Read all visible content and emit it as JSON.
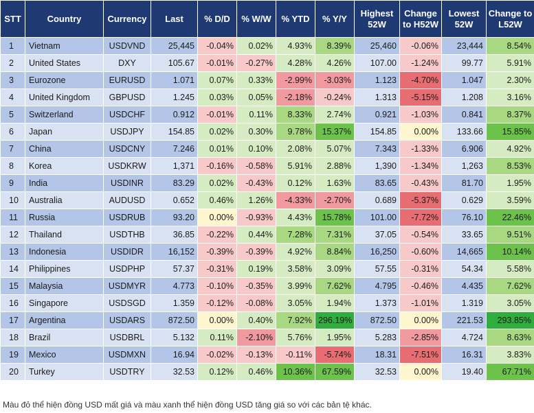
{
  "headers": [
    "STT",
    "Country",
    "Currency",
    "Last",
    "% D/D",
    "% W/W",
    "% YTD",
    "% Y/Y",
    "Highest 52W",
    "Change to H52W",
    "Lowest 52W",
    "Change to L52W"
  ],
  "rows": [
    {
      "stt": "1",
      "country": "Vietnam",
      "currency": "USDVND",
      "last": "25,445",
      "dd": "-0.04%",
      "ww": "0.02%",
      "ytd": "4.93%",
      "yy": "8.39%",
      "high": "25,460",
      "h52": "-0.06%",
      "low": "23,444",
      "l52": "8.54%"
    },
    {
      "stt": "2",
      "country": "United States",
      "currency": "DXY",
      "last": "105.67",
      "dd": "-0.01%",
      "ww": "-0.27%",
      "ytd": "4.28%",
      "yy": "4.26%",
      "high": "107.00",
      "h52": "-1.24%",
      "low": "99.77",
      "l52": "5.91%"
    },
    {
      "stt": "3",
      "country": "Eurozone",
      "currency": "EURUSD",
      "last": "1.071",
      "dd": "0.07%",
      "ww": "0.33%",
      "ytd": "-2.99%",
      "yy": "-3.03%",
      "high": "1.123",
      "h52": "-4.70%",
      "low": "1.047",
      "l52": "2.30%"
    },
    {
      "stt": "4",
      "country": "United Kingdom",
      "currency": "GBPUSD",
      "last": "1.245",
      "dd": "0.03%",
      "ww": "0.05%",
      "ytd": "-2.18%",
      "yy": "-0.24%",
      "high": "1.313",
      "h52": "-5.15%",
      "low": "1.208",
      "l52": "3.16%"
    },
    {
      "stt": "5",
      "country": "Switzerland",
      "currency": "USDCHF",
      "last": "0.912",
      "dd": "-0.01%",
      "ww": "0.11%",
      "ytd": "8.33%",
      "yy": "2.74%",
      "high": "0.921",
      "h52": "-1.03%",
      "low": "0.841",
      "l52": "8.37%"
    },
    {
      "stt": "6",
      "country": "Japan",
      "currency": "USDJPY",
      "last": "154.85",
      "dd": "0.02%",
      "ww": "0.30%",
      "ytd": "9.78%",
      "yy": "15.37%",
      "high": "154.85",
      "h52": "0.00%",
      "low": "133.66",
      "l52": "15.85%"
    },
    {
      "stt": "7",
      "country": "China",
      "currency": "USDCNY",
      "last": "7.246",
      "dd": "0.01%",
      "ww": "0.10%",
      "ytd": "2.08%",
      "yy": "5.07%",
      "high": "7.343",
      "h52": "-1.33%",
      "low": "6.906",
      "l52": "4.92%"
    },
    {
      "stt": "8",
      "country": "Korea",
      "currency": "USDKRW",
      "last": "1,371",
      "dd": "-0.16%",
      "ww": "-0.58%",
      "ytd": "5.91%",
      "yy": "2.88%",
      "high": "1,390",
      "h52": "-1.34%",
      "low": "1,263",
      "l52": "8.53%"
    },
    {
      "stt": "9",
      "country": "India",
      "currency": "USDINR",
      "last": "83.29",
      "dd": "0.02%",
      "ww": "-0.43%",
      "ytd": "0.12%",
      "yy": "1.63%",
      "high": "83.65",
      "h52": "-0.43%",
      "low": "81.70",
      "l52": "1.95%"
    },
    {
      "stt": "10",
      "country": "Australia",
      "currency": "AUDUSD",
      "last": "0.652",
      "dd": "0.46%",
      "ww": "1.26%",
      "ytd": "-4.33%",
      "yy": "-2.70%",
      "high": "0.689",
      "h52": "-5.37%",
      "low": "0.629",
      "l52": "3.59%"
    },
    {
      "stt": "11",
      "country": "Russia",
      "currency": "USDRUB",
      "last": "93.20",
      "dd": "0.00%",
      "ww": "-0.93%",
      "ytd": "4.43%",
      "yy": "15.78%",
      "high": "101.00",
      "h52": "-7.72%",
      "low": "76.10",
      "l52": "22.46%"
    },
    {
      "stt": "12",
      "country": "Thailand",
      "currency": "USDTHB",
      "last": "36.85",
      "dd": "-0.22%",
      "ww": "0.44%",
      "ytd": "7.28%",
      "yy": "7.31%",
      "high": "37.05",
      "h52": "-0.54%",
      "low": "33.65",
      "l52": "9.51%"
    },
    {
      "stt": "13",
      "country": "Indonesia",
      "currency": "USDIDR",
      "last": "16,152",
      "dd": "-0.39%",
      "ww": "-0.39%",
      "ytd": "4.92%",
      "yy": "8.84%",
      "high": "16,250",
      "h52": "-0.60%",
      "low": "14,665",
      "l52": "10.14%"
    },
    {
      "stt": "14",
      "country": "Philippines",
      "currency": "USDPHP",
      "last": "57.37",
      "dd": "-0.31%",
      "ww": "0.19%",
      "ytd": "3.58%",
      "yy": "3.09%",
      "high": "57.55",
      "h52": "-0.31%",
      "low": "54.34",
      "l52": "5.58%"
    },
    {
      "stt": "15",
      "country": "Malaysia",
      "currency": "USDMYR",
      "last": "4.773",
      "dd": "-0.10%",
      "ww": "-0.35%",
      "ytd": "3.99%",
      "yy": "7.62%",
      "high": "4.795",
      "h52": "-0.46%",
      "low": "4.435",
      "l52": "7.62%"
    },
    {
      "stt": "16",
      "country": "Singapore",
      "currency": "USDSGD",
      "last": "1.359",
      "dd": "-0.12%",
      "ww": "-0.08%",
      "ytd": "3.05%",
      "yy": "1.94%",
      "high": "1.373",
      "h52": "-1.01%",
      "low": "1.319",
      "l52": "3.05%"
    },
    {
      "stt": "17",
      "country": "Argentina",
      "currency": "USDARS",
      "last": "872.50",
      "dd": "0.00%",
      "ww": "0.40%",
      "ytd": "7.92%",
      "yy": "296.19%",
      "high": "872.50",
      "h52": "0.00%",
      "low": "221.53",
      "l52": "293.85%"
    },
    {
      "stt": "18",
      "country": "Brazil",
      "currency": "USDBRL",
      "last": "5.132",
      "dd": "0.11%",
      "ww": "-2.10%",
      "ytd": "5.76%",
      "yy": "1.95%",
      "high": "5.283",
      "h52": "-2.85%",
      "low": "4.724",
      "l52": "8.63%"
    },
    {
      "stt": "19",
      "country": "Mexico",
      "currency": "USDMXN",
      "last": "16.94",
      "dd": "-0.02%",
      "ww": "-0.13%",
      "ytd": "-0.11%",
      "yy": "-5.74%",
      "high": "18.31",
      "h52": "-7.51%",
      "low": "16.31",
      "l52": "3.83%"
    },
    {
      "stt": "20",
      "country": "Turkey",
      "currency": "USDTRY",
      "last": "32.53",
      "dd": "0.12%",
      "ww": "0.46%",
      "ytd": "10.36%",
      "yy": "67.59%",
      "high": "32.53",
      "h52": "0.00%",
      "low": "19.40",
      "l52": "67.71%"
    }
  ],
  "note": "Màu đỏ thể hiện đồng USD mất giá và màu xanh thể hiện đồng USD tăng giá so với các bản tệ khác.",
  "colors": {
    "header_bg": "#1f3a73",
    "row_odd": "#b4c6e7",
    "row_even": "#d9e2f3",
    "red_light": "#f8c9c9",
    "red_mid": "#f09aa0",
    "red_strong": "#e86d72",
    "yellow": "#fdf6cf",
    "green_light": "#d5ecc2",
    "green_mid": "#a8d882",
    "green_strong": "#6cc24a",
    "green_max": "#2fae3e"
  }
}
